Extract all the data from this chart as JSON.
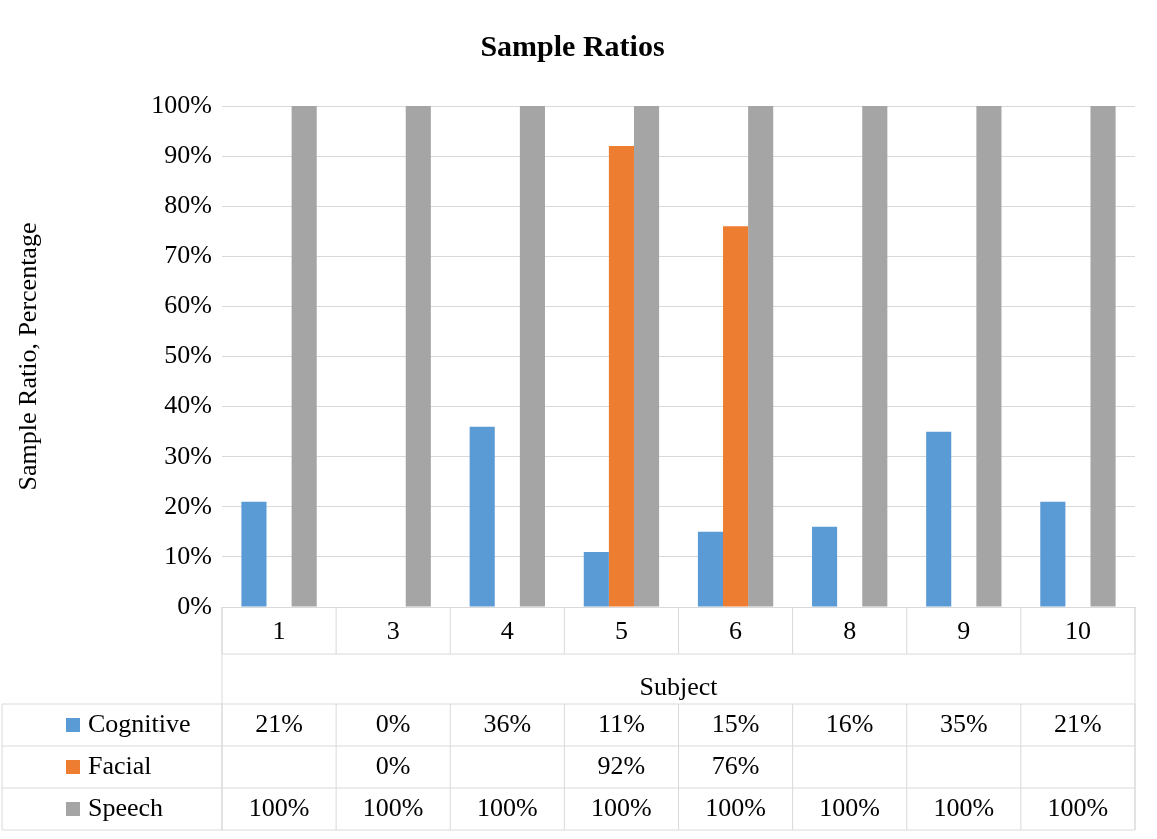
{
  "chart_data": {
    "type": "bar",
    "title": "Sample Ratios",
    "xlabel": "Subject",
    "ylabel": "Sample Ratio, Percentage",
    "categories": [
      "1",
      "3",
      "4",
      "5",
      "6",
      "8",
      "9",
      "10"
    ],
    "series": [
      {
        "name": "Cognitive",
        "color": "#5b9bd5",
        "values": [
          21,
          0,
          36,
          11,
          15,
          16,
          35,
          21
        ],
        "value_labels": [
          "21%",
          "0%",
          "36%",
          "11%",
          "15%",
          "16%",
          "35%",
          "21%"
        ]
      },
      {
        "name": "Facial",
        "color": "#ed7d31",
        "values": [
          null,
          0,
          null,
          92,
          76,
          null,
          null,
          null
        ],
        "value_labels": [
          null,
          "0%",
          null,
          "92%",
          "76%",
          null,
          null,
          null
        ]
      },
      {
        "name": "Speech",
        "color": "#a5a5a5",
        "values": [
          100,
          100,
          100,
          100,
          100,
          100,
          100,
          100
        ],
        "value_labels": [
          "100%",
          "100%",
          "100%",
          "100%",
          "100%",
          "100%",
          "100%",
          "100%"
        ]
      }
    ],
    "ylim": [
      0,
      100
    ],
    "yticks": [
      {
        "value": 0,
        "label": "0%"
      },
      {
        "value": 10,
        "label": "10%"
      },
      {
        "value": 20,
        "label": "20%"
      },
      {
        "value": 30,
        "label": "30%"
      },
      {
        "value": 40,
        "label": "40%"
      },
      {
        "value": 50,
        "label": "50%"
      },
      {
        "value": 60,
        "label": "60%"
      },
      {
        "value": 70,
        "label": "70%"
      },
      {
        "value": 80,
        "label": "80%"
      },
      {
        "value": 90,
        "label": "90%"
      },
      {
        "value": 100,
        "label": "100%"
      }
    ],
    "grid": "y",
    "legend": "bottom"
  }
}
